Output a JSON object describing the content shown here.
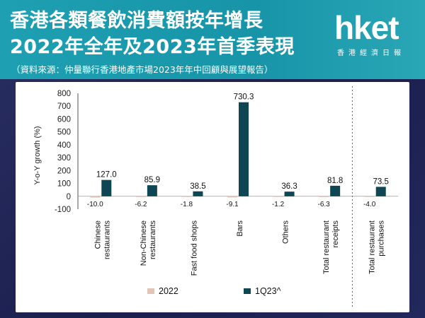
{
  "header": {
    "title_line1": "香港各類餐飲消費額按年增長",
    "title_line2": "2022年全年及2023年首季表現",
    "source_note": "（資料來源：仲量聯行香港地產市場2023年年中回顧與展望報告）"
  },
  "logo": {
    "text": "hket",
    "tagline": "香港經濟日報"
  },
  "colors": {
    "series_2022": "#e3c5b8",
    "series_1q23": "#0f4654",
    "header_bg": "#1ea0b2"
  },
  "chart_data": {
    "type": "bar",
    "ylabel": "Y-o-Y growth (%)",
    "ylim": [
      -100,
      800
    ],
    "yticks": [
      -100,
      0,
      100,
      200,
      300,
      400,
      500,
      600,
      700,
      800
    ],
    "categories": [
      [
        "Chinese",
        "restaurants"
      ],
      [
        "Non-Chinese",
        "restaurants"
      ],
      [
        "Fast food shops"
      ],
      [
        "Bars"
      ],
      [
        "Others"
      ],
      [
        "Total restaurant",
        "receipts"
      ],
      [
        "Total restaurant",
        "purchases"
      ]
    ],
    "series": [
      {
        "name": "2022",
        "values": [
          -10.0,
          -6.2,
          -1.8,
          -9.1,
          -1.2,
          -6.3,
          -4.0
        ],
        "labels": [
          "-10.0",
          "-6.2",
          "-1.8",
          "-9.1",
          "-1.2",
          "-6.3",
          "-4.0"
        ]
      },
      {
        "name": "1Q23^",
        "values": [
          127.0,
          85.9,
          38.5,
          730.3,
          36.3,
          81.8,
          73.5
        ],
        "labels": [
          "127.0",
          "85.9",
          "38.5",
          "730.3",
          "36.3",
          "81.8",
          "73.5"
        ]
      }
    ],
    "legend_position": "bottom",
    "separator_before_last": true
  }
}
